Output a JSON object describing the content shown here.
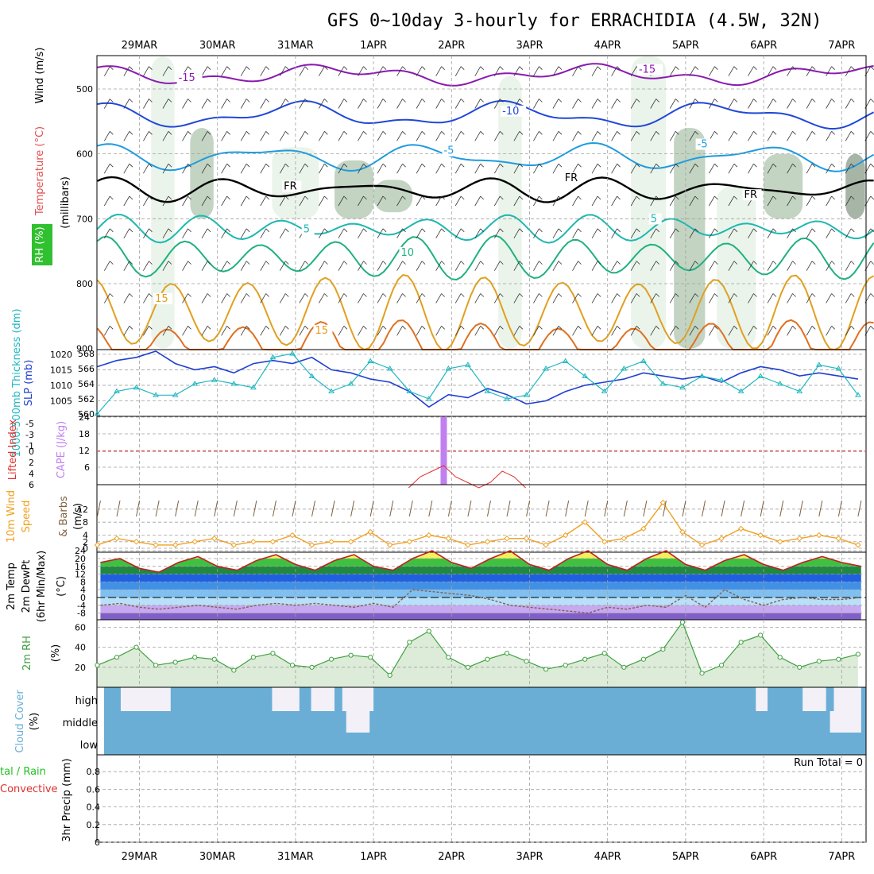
{
  "title": "GFS 0~10day 3-hourly for ERRACHIDIA (4.5W, 32N)",
  "dates": [
    "29MAR",
    "30MAR",
    "31MAR",
    "1APR",
    "2APR",
    "3APR",
    "4APR",
    "5APR",
    "6APR",
    "7APR"
  ],
  "colors": {
    "grid": "#a0a0a0",
    "purple": "#8a1ab0",
    "blue": "#2048d8",
    "ltblue": "#1e9be0",
    "teal": "#1cb8b0",
    "sea": "#20b080",
    "orange": "#e0a020",
    "dkorange": "#e07020",
    "rh_light": "#e6f2e6",
    "rh_mid": "#b8ccb8",
    "rh_dark": "#98a898",
    "rh_green": "#30d030",
    "slp": "#2040d0",
    "thick": "#20b8c0",
    "li": "#e03030",
    "cape": "#c080f0",
    "wind10": "#f0a020",
    "barb": "#806040",
    "temp": "#c02020",
    "dew": "#806050",
    "rh2m": "#40a040",
    "cloud": "#6aaed6",
    "cloudgap": "#f4f0f8"
  },
  "panels": {
    "upper": {
      "ylabel": "(millibars)",
      "labels": [
        {
          "text": "Wind (m/s)",
          "color": "#000000"
        },
        {
          "text": "Temperature (°C)",
          "color": "#e05050"
        },
        {
          "text": "RH (%)",
          "color": "#20c020"
        }
      ],
      "levels": [
        500,
        600,
        700,
        800,
        900
      ],
      "contour_labels": [
        {
          "text": "-15",
          "day": 0.5,
          "p": 488,
          "color": "#8a1ab0"
        },
        {
          "text": "-15",
          "day": 6.4,
          "p": 475,
          "color": "#8a1ab0"
        },
        {
          "text": "-10",
          "day": 4.65,
          "p": 539,
          "color": "#2048d8"
        },
        {
          "text": "-5",
          "day": 3.9,
          "p": 600,
          "color": "#1e9be0"
        },
        {
          "text": "-5",
          "day": 7.15,
          "p": 590,
          "color": "#1e9be0"
        },
        {
          "text": "FR",
          "day": 1.85,
          "p": 655,
          "color": "#000000"
        },
        {
          "text": "FR",
          "day": 5.45,
          "p": 642,
          "color": "#000000"
        },
        {
          "text": "FR",
          "day": 7.75,
          "p": 668,
          "color": "#000000"
        },
        {
          "text": "5",
          "day": 2.1,
          "p": 721,
          "color": "#1cb8b0"
        },
        {
          "text": "5",
          "day": 6.55,
          "p": 705,
          "color": "#1cb8b0"
        },
        {
          "text": "10",
          "day": 3.35,
          "p": 757,
          "color": "#20b080"
        },
        {
          "text": "15",
          "day": 0.2,
          "p": 828,
          "color": "#e0a020"
        },
        {
          "text": "15",
          "day": 2.25,
          "p": 877,
          "color": "#e0a020"
        }
      ]
    },
    "slp": {
      "label_left": "1000-500mb Thickness (dm)",
      "label_right": "SLP (mb)",
      "thickness_ticks": [
        560,
        562,
        564,
        566,
        568
      ],
      "slp_ticks": [
        1005,
        1010,
        1015,
        1020
      ]
    },
    "li": {
      "label_left": "Lifted Index",
      "label_right": "CAPE (J/kg)",
      "li_ticks": [
        -5,
        -3,
        -1,
        0,
        2,
        4,
        6
      ],
      "cape_ticks": [
        6,
        12,
        18,
        24
      ]
    },
    "wind": {
      "label1": "10m Wind",
      "label2": "Speed",
      "label3": "& Barbs",
      "label4": "(m/s)",
      "ticks": [
        0,
        2,
        4,
        8,
        12
      ]
    },
    "temp": {
      "label1": "2m Temp",
      "label2": "2m DewPt",
      "label3": "(6hr Min/Max)",
      "label4": "(°C)",
      "ticks": [
        -8,
        -4,
        0,
        4,
        8,
        12,
        16,
        20,
        24
      ]
    },
    "rh": {
      "label1": "2m RH",
      "label2": "(%)",
      "ticks": [
        20,
        40,
        60
      ]
    },
    "cloud": {
      "label1": "Cloud Cover",
      "label2": "(%)",
      "rows": [
        "high",
        "middle",
        "low"
      ]
    },
    "precip": {
      "label_left1": "tal / Rain",
      "label_left2": "Convective",
      "label_right": "3hr Precip (mm)",
      "ticks": [
        "0",
        "0.2",
        "0.4",
        "0.6",
        "0.8"
      ],
      "run_total": "Run Total = 0"
    }
  },
  "chart_data": [
    {
      "type": "line",
      "name": "sea-level pressure",
      "x_days": [
        0,
        0.25,
        0.5,
        0.75,
        1,
        1.25,
        1.5,
        1.75,
        2,
        2.25,
        2.5,
        2.75,
        3,
        3.25,
        3.5,
        3.75,
        4,
        4.25,
        4.5,
        4.75,
        5,
        5.25,
        5.5,
        5.75,
        6,
        6.25,
        6.5,
        6.75,
        7,
        7.25,
        7.5,
        7.75,
        8,
        8.25,
        8.5,
        8.75,
        9,
        9.25,
        9.5,
        9.75
      ],
      "slp_mb": [
        1016,
        1018,
        1019,
        1021,
        1017,
        1015,
        1016,
        1014,
        1017,
        1018,
        1017,
        1019,
        1015,
        1014,
        1012,
        1011,
        1008,
        1003,
        1007,
        1006,
        1009,
        1007,
        1004,
        1005,
        1008,
        1010,
        1011,
        1012,
        1014,
        1013,
        1012,
        1013,
        1011,
        1014,
        1016,
        1015,
        1013,
        1014,
        1013,
        1012
      ],
      "thickness_dm": [
        560,
        563,
        563.5,
        562.5,
        562.5,
        564,
        564.5,
        564,
        563.5,
        567.5,
        568,
        565,
        563,
        564,
        567,
        566,
        563,
        562,
        566,
        566.5,
        563,
        562,
        562.5,
        566,
        567,
        565,
        563,
        566,
        567,
        564,
        563.5,
        565,
        564.5,
        563,
        565,
        564,
        563,
        566.5,
        566,
        562.5
      ]
    },
    {
      "type": "bar",
      "name": "CAPE (J/kg)",
      "x_days": [
        3.9
      ],
      "values": [
        24
      ],
      "li_threshold": 0,
      "li_ticks": [
        -5,
        -3,
        -1,
        0,
        2,
        4,
        6
      ]
    },
    {
      "type": "line",
      "name": "10m wind speed (m/s)",
      "x_days": [
        0,
        0.25,
        0.5,
        0.75,
        1,
        1.25,
        1.5,
        1.75,
        2,
        2.25,
        2.5,
        2.75,
        3,
        3.25,
        3.5,
        3.75,
        4,
        4.25,
        4.5,
        4.75,
        5,
        5.25,
        5.5,
        5.75,
        6,
        6.25,
        6.5,
        6.75,
        7,
        7.25,
        7.5,
        7.75,
        8,
        8.25,
        8.5,
        8.75,
        9,
        9.25,
        9.5,
        9.75
      ],
      "values": [
        1,
        3,
        2,
        1,
        1,
        2,
        3,
        1,
        2,
        2,
        4,
        1,
        2,
        2,
        5,
        1,
        2,
        4,
        3,
        1,
        2,
        3,
        3,
        1,
        4,
        8,
        2,
        3,
        6,
        14,
        5,
        1,
        3,
        6,
        4,
        2,
        3,
        4,
        3,
        1
      ]
    },
    {
      "type": "area",
      "name": "2m temperature / dew point (°C)",
      "x_days": [
        0,
        0.25,
        0.5,
        0.75,
        1,
        1.25,
        1.5,
        1.75,
        2,
        2.25,
        2.5,
        2.75,
        3,
        3.25,
        3.5,
        3.75,
        4,
        4.25,
        4.5,
        4.75,
        5,
        5.25,
        5.5,
        5.75,
        6,
        6.25,
        6.5,
        6.75,
        7,
        7.25,
        7.5,
        7.75,
        8,
        8.25,
        8.5,
        8.75,
        9,
        9.25,
        9.5,
        9.75
      ],
      "temp_c": [
        18,
        20,
        15,
        13,
        18,
        21,
        16,
        14,
        19,
        22,
        17,
        14,
        19,
        22,
        16,
        14,
        20,
        24,
        18,
        15,
        20,
        24,
        17,
        14,
        20,
        24,
        17,
        14,
        20,
        24,
        17,
        14,
        19,
        22,
        17,
        14,
        18,
        21,
        18,
        16
      ],
      "dewpt_c": [
        -4,
        -3,
        -5,
        -6,
        -5,
        -4,
        -5,
        -6,
        -4,
        -3,
        -4,
        -3,
        -4,
        -5,
        -3,
        -5,
        4,
        3,
        2,
        1,
        -1,
        -4,
        -5,
        -6,
        -7,
        -8,
        -5,
        -6,
        -4,
        -5,
        1,
        -5,
        4,
        -1,
        -4,
        -1,
        0,
        -1,
        -1,
        0
      ]
    },
    {
      "type": "area",
      "name": "2m RH (%)",
      "x_days": [
        0,
        0.25,
        0.5,
        0.75,
        1,
        1.25,
        1.5,
        1.75,
        2,
        2.25,
        2.5,
        2.75,
        3,
        3.25,
        3.5,
        3.75,
        4,
        4.25,
        4.5,
        4.75,
        5,
        5.25,
        5.5,
        5.75,
        6,
        6.25,
        6.5,
        6.75,
        7,
        7.25,
        7.5,
        7.75,
        8,
        8.25,
        8.5,
        8.75,
        9,
        9.25,
        9.5,
        9.75
      ],
      "values": [
        22,
        30,
        40,
        22,
        25,
        30,
        28,
        17,
        30,
        34,
        22,
        20,
        28,
        32,
        30,
        12,
        45,
        56,
        30,
        20,
        28,
        34,
        26,
        18,
        22,
        28,
        34,
        20,
        28,
        38,
        65,
        14,
        22,
        45,
        52,
        30,
        20,
        26,
        28,
        33
      ]
    },
    {
      "type": "heatmap",
      "name": "cloud cover",
      "rows": [
        "high",
        "middle",
        "low"
      ],
      "gaps": [
        {
          "row": "high",
          "start_day": 0.26,
          "end_day": 0.9
        },
        {
          "row": "high",
          "start_day": 2.2,
          "end_day": 2.55
        },
        {
          "row": "high",
          "start_day": 2.7,
          "end_day": 3.0
        },
        {
          "row": "high",
          "start_day": 3.1,
          "end_day": 3.5
        },
        {
          "row": "middle",
          "start_day": 3.15,
          "end_day": 3.45
        },
        {
          "row": "high",
          "start_day": 8.4,
          "end_day": 8.55
        },
        {
          "row": "high",
          "start_day": 9.0,
          "end_day": 9.3
        },
        {
          "row": "high",
          "start_day": 9.4,
          "end_day": 9.75
        },
        {
          "row": "middle",
          "start_day": 9.35,
          "end_day": 9.75
        }
      ]
    }
  ]
}
